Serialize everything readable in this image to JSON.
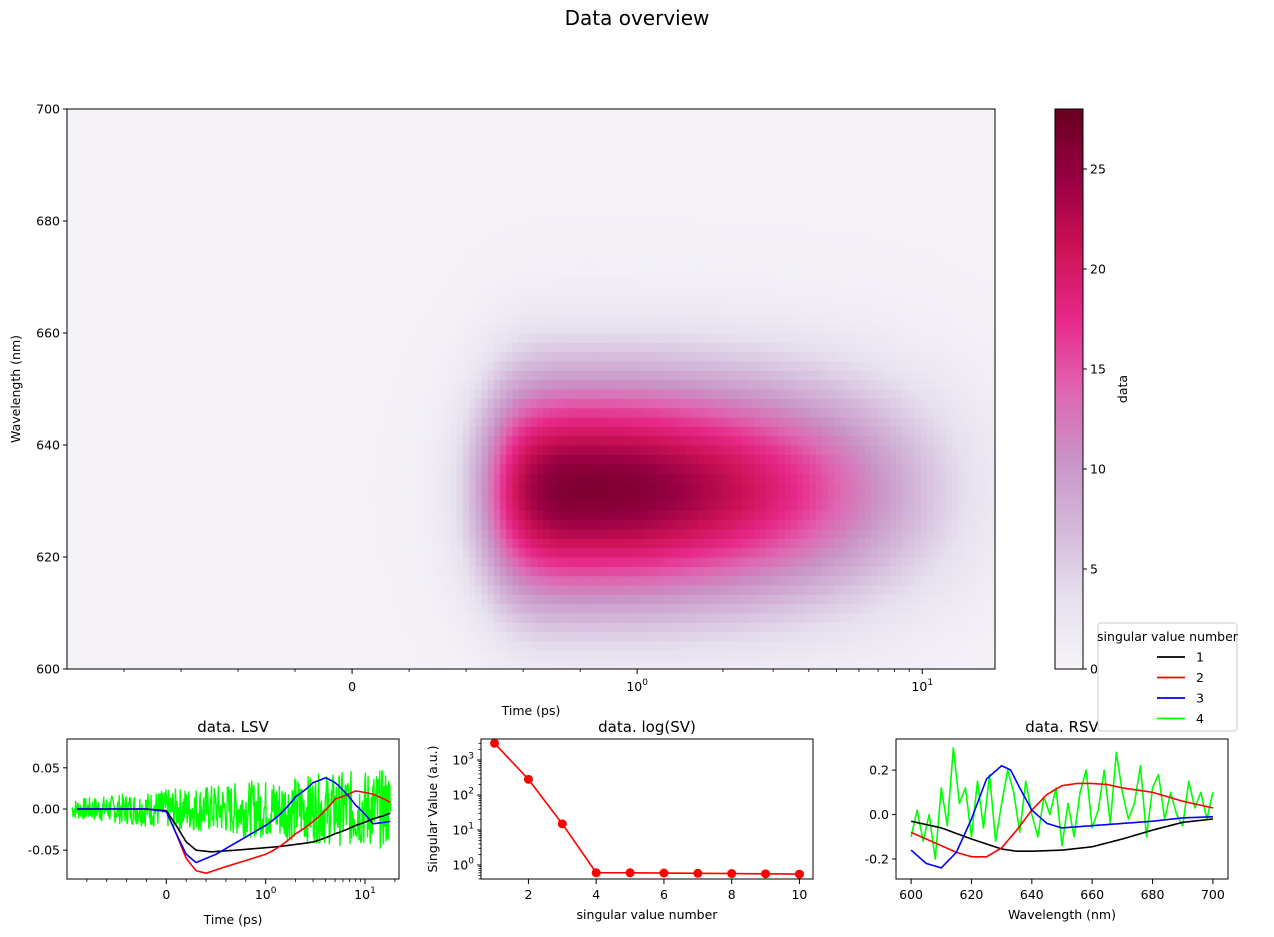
{
  "figure": {
    "title": "Data overview"
  },
  "chart_data": [
    {
      "type": "heatmap",
      "title": "",
      "xlabel": "Time (ps)",
      "ylabel": "Wavelength (nm)",
      "x_scale": "symlog",
      "x_ticks": [
        {
          "value": 0,
          "label": "0"
        },
        {
          "value": 1,
          "label": "10^0"
        },
        {
          "value": 10,
          "label": "10^1"
        }
      ],
      "xlim": [
        -1,
        18
      ],
      "ylim": [
        600,
        700
      ],
      "y_ticks": [
        "600",
        "620",
        "640",
        "660",
        "680",
        "700"
      ],
      "colorbar": {
        "label": "data",
        "range": [
          0,
          28
        ],
        "ticks": [
          "0",
          "5",
          "10",
          "15",
          "20",
          "25"
        ],
        "colormap": "PuRd"
      },
      "z_model": {
        "peak_value": 27.5,
        "peak_wavelength": 632,
        "wavelength_width": 20,
        "rise_time_ps": 0.5,
        "rise_width_ps": 0.07,
        "decay_time_ps": 6.5
      }
    },
    {
      "type": "line",
      "title": "data. LSV",
      "xlabel": "Time (ps)",
      "ylabel": "",
      "x_scale": "symlog",
      "xlim": [
        -1,
        22
      ],
      "ylim": [
        -0.085,
        0.085
      ],
      "x_ticks": [
        {
          "value": 0,
          "label": "0"
        },
        {
          "value": 1,
          "label": "10^0"
        },
        {
          "value": 10,
          "label": "10^1"
        }
      ],
      "y_ticks": [
        "-0.05",
        "0.00",
        "0.05"
      ],
      "series": [
        {
          "name": "1",
          "color": "#000000",
          "x": [
            -0.9,
            -0.2,
            0.0,
            0.1,
            0.2,
            0.3,
            0.45,
            0.7,
            1,
            2,
            3,
            5,
            8,
            12,
            18
          ],
          "values": [
            0.0,
            0.0,
            -0.002,
            -0.02,
            -0.04,
            -0.05,
            -0.052,
            -0.05,
            -0.047,
            -0.043,
            -0.04,
            -0.03,
            -0.02,
            -0.012,
            -0.005
          ]
        },
        {
          "name": "2",
          "color": "#ff0000",
          "x": [
            -0.9,
            -0.2,
            0.0,
            0.1,
            0.2,
            0.3,
            0.4,
            0.6,
            1,
            2,
            3,
            5,
            8,
            12,
            18
          ],
          "values": [
            0.0,
            0.0,
            -0.003,
            -0.03,
            -0.06,
            -0.075,
            -0.078,
            -0.07,
            -0.055,
            -0.03,
            -0.015,
            0.012,
            0.022,
            0.018,
            0.008
          ]
        },
        {
          "name": "3",
          "color": "#0000ff",
          "x": [
            -0.9,
            -0.2,
            0.0,
            0.1,
            0.2,
            0.3,
            0.5,
            1,
            2,
            3,
            4,
            5,
            8,
            12,
            18
          ],
          "values": [
            0.0,
            0.0,
            -0.003,
            -0.03,
            -0.055,
            -0.065,
            -0.055,
            -0.02,
            0.015,
            0.032,
            0.038,
            0.032,
            0.005,
            -0.018,
            -0.015
          ]
        },
        {
          "name": "4",
          "color": "#00ff00",
          "noise": 0.04
        }
      ]
    },
    {
      "type": "line",
      "title": "data. log(SV)",
      "xlabel": "singular value number",
      "ylabel": "Singular Value (a.u.)",
      "y_scale": "log",
      "xlim": [
        0.6,
        10.4
      ],
      "ylim_log10": [
        -0.4,
        3.6
      ],
      "x_ticks": [
        "2",
        "4",
        "6",
        "8",
        "10"
      ],
      "y_ticks": [
        {
          "exp": 0,
          "label": "10^0"
        },
        {
          "exp": 1,
          "label": "10^1"
        },
        {
          "exp": 2,
          "label": "10^2"
        },
        {
          "exp": 3,
          "label": "10^3"
        }
      ],
      "series": [
        {
          "color": "#ff0000",
          "x": [
            1,
            2,
            3,
            4,
            5,
            6,
            7,
            8,
            9,
            10
          ],
          "values": [
            3000,
            280,
            15,
            0.6,
            0.6,
            0.59,
            0.58,
            0.57,
            0.56,
            0.55
          ]
        }
      ]
    },
    {
      "type": "line",
      "title": "data. RSV",
      "xlabel": "Wavelength (nm)",
      "ylabel": "",
      "xlim": [
        595,
        705
      ],
      "ylim": [
        -0.29,
        0.34
      ],
      "x_ticks": [
        "600",
        "620",
        "640",
        "660",
        "680",
        "700"
      ],
      "y_ticks": [
        "-0.2",
        "0.0",
        "0.2"
      ],
      "series": [
        {
          "name": "1",
          "color": "#000000",
          "x": [
            600,
            610,
            620,
            630,
            635,
            640,
            650,
            660,
            670,
            680,
            690,
            700
          ],
          "values": [
            -0.03,
            -0.06,
            -0.11,
            -0.155,
            -0.165,
            -0.165,
            -0.16,
            -0.145,
            -0.11,
            -0.07,
            -0.035,
            -0.02
          ]
        },
        {
          "name": "2",
          "color": "#ff0000",
          "x": [
            600,
            605,
            610,
            615,
            620,
            625,
            630,
            635,
            640,
            645,
            650,
            655,
            660,
            665,
            670,
            680,
            690,
            700
          ],
          "values": [
            -0.08,
            -0.11,
            -0.14,
            -0.17,
            -0.19,
            -0.19,
            -0.15,
            -0.07,
            0.02,
            0.09,
            0.13,
            0.14,
            0.14,
            0.135,
            0.12,
            0.1,
            0.06,
            0.03
          ]
        },
        {
          "name": "3",
          "color": "#0000ff",
          "x": [
            600,
            605,
            610,
            615,
            620,
            625,
            630,
            633,
            636,
            640,
            645,
            650,
            660,
            670,
            680,
            690,
            700
          ],
          "values": [
            -0.16,
            -0.22,
            -0.24,
            -0.17,
            -0.02,
            0.16,
            0.22,
            0.2,
            0.12,
            0.02,
            -0.04,
            -0.06,
            -0.05,
            -0.04,
            -0.03,
            -0.015,
            -0.01
          ]
        },
        {
          "name": "4",
          "color": "#00ff00",
          "x": [
            600,
            602,
            604,
            606,
            608,
            610,
            612,
            614,
            616,
            618,
            620,
            622,
            624,
            626,
            628,
            630,
            632,
            634,
            636,
            638,
            640,
            642,
            644,
            646,
            648,
            650,
            652,
            654,
            656,
            658,
            660,
            662,
            664,
            666,
            668,
            670,
            672,
            674,
            676,
            678,
            680,
            682,
            684,
            686,
            688,
            690,
            692,
            694,
            696,
            698,
            700
          ],
          "values": [
            -0.1,
            0.02,
            -0.12,
            0.0,
            -0.2,
            0.12,
            -0.05,
            0.3,
            0.05,
            0.12,
            -0.1,
            0.15,
            -0.06,
            0.18,
            -0.12,
            0.05,
            0.2,
            0.1,
            -0.08,
            0.15,
            0.0,
            -0.1,
            0.08,
            0.0,
            0.12,
            -0.14,
            0.05,
            -0.1,
            0.1,
            0.2,
            -0.06,
            0.02,
            0.2,
            -0.04,
            0.28,
            0.1,
            -0.02,
            0.05,
            0.22,
            -0.1,
            0.12,
            0.18,
            -0.02,
            0.1,
            0.0,
            -0.05,
            0.15,
            0.03,
            0.1,
            -0.02,
            0.1
          ]
        }
      ]
    }
  ],
  "legend": {
    "title": "singular value number",
    "placement": "right",
    "entries": [
      {
        "label": "1",
        "color": "#000000"
      },
      {
        "label": "2",
        "color": "#ff0000"
      },
      {
        "label": "3",
        "color": "#0000ff"
      },
      {
        "label": "4",
        "color": "#00ff00"
      }
    ]
  }
}
